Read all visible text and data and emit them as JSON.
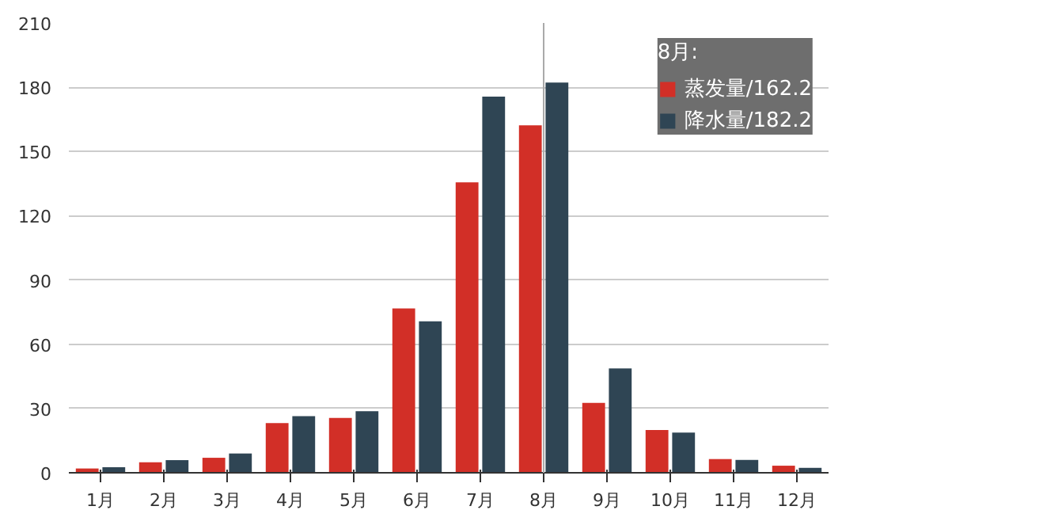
{
  "chart_data": {
    "type": "bar",
    "categories": [
      "1月",
      "2月",
      "3月",
      "4月",
      "5月",
      "6月",
      "7月",
      "8月",
      "9月",
      "10月",
      "11月",
      "12月"
    ],
    "series": [
      {
        "name": "蒸发量/162.2",
        "color": "#d22f27",
        "values": [
          2.0,
          4.9,
          7.0,
          23.2,
          25.6,
          76.7,
          135.6,
          162.2,
          32.6,
          20.0,
          6.4,
          3.3
        ]
      },
      {
        "name": "降水量/182.2",
        "color": "#2f4554",
        "values": [
          2.6,
          5.9,
          9.0,
          26.4,
          28.7,
          70.7,
          175.6,
          182.2,
          48.7,
          18.8,
          6.0,
          2.3
        ]
      }
    ],
    "ylim": [
      0,
      210
    ],
    "yticks": [
      0,
      30,
      60,
      90,
      120,
      150,
      180,
      210
    ],
    "grid": "y",
    "ref_lines": [
      {
        "axis": "x",
        "value": "8月",
        "color": "#aaaaaa"
      }
    ],
    "legend_title": "8月:",
    "legend": "top right"
  }
}
